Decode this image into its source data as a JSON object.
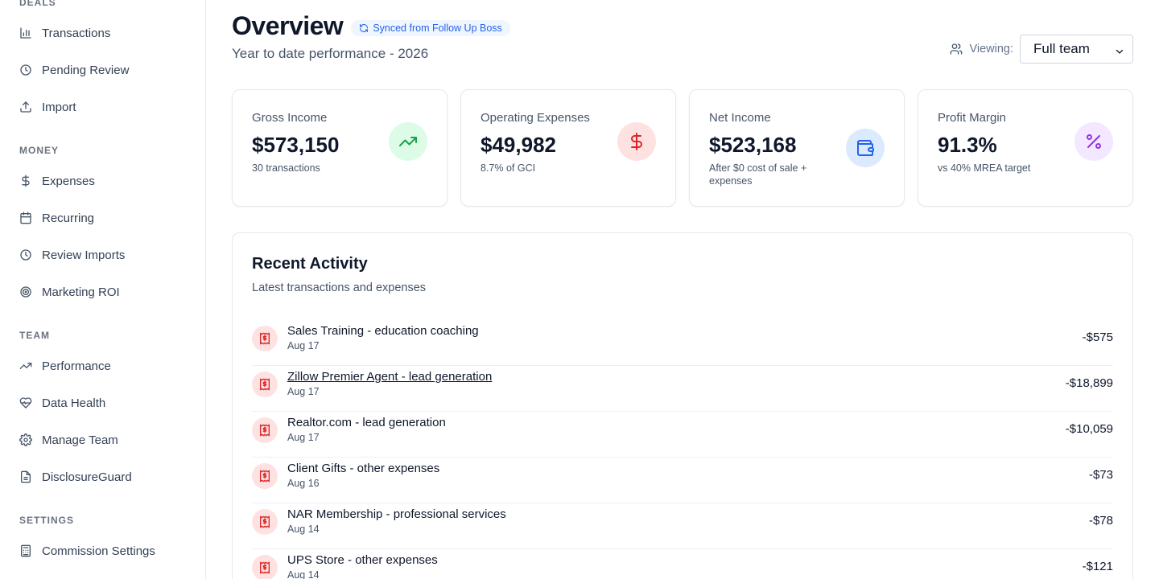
{
  "sidebar": {
    "sections": [
      {
        "label": "DEALS"
      },
      {
        "label": "MONEY"
      },
      {
        "label": "TEAM"
      },
      {
        "label": "SETTINGS"
      }
    ],
    "items": [
      {
        "label": "Transactions",
        "icon": "bar-chart-icon"
      },
      {
        "label": "Pending Review",
        "icon": "clock-icon"
      },
      {
        "label": "Import",
        "icon": "upload-icon"
      },
      {
        "label": "Expenses",
        "icon": "dollar-icon"
      },
      {
        "label": "Recurring",
        "icon": "calendar-icon"
      },
      {
        "label": "Review Imports",
        "icon": "clock-icon"
      },
      {
        "label": "Marketing ROI",
        "icon": "target-icon"
      },
      {
        "label": "Performance",
        "icon": "trending-up-icon"
      },
      {
        "label": "Data Health",
        "icon": "heart-pulse-icon"
      },
      {
        "label": "Manage Team",
        "icon": "gear-icon"
      },
      {
        "label": "DisclosureGuard",
        "icon": "file-icon"
      },
      {
        "label": "Commission Settings",
        "icon": "calculator-icon"
      }
    ]
  },
  "header": {
    "title": "Overview",
    "sync_badge": "Synced from Follow Up Boss",
    "subtitle": "Year to date performance - 2026",
    "viewing_label": "Viewing:",
    "viewing_value": "Full team"
  },
  "stats": [
    {
      "label": "Gross Income",
      "value": "$573,150",
      "sub": "30 transactions",
      "icon": "trending-up-icon",
      "color": "#16a34a",
      "bg": "#dcfce7"
    },
    {
      "label": "Operating Expenses",
      "value": "$49,982",
      "sub": "8.7% of GCI",
      "icon": "dollar-icon",
      "color": "#dc2626",
      "bg": "#fee2e2"
    },
    {
      "label": "Net Income",
      "value": "$523,168",
      "sub": "After $0 cost of sale + expenses",
      "icon": "wallet-icon",
      "color": "#2563eb",
      "bg": "#dbeafe"
    },
    {
      "label": "Profit Margin",
      "value": "91.3%",
      "sub": "vs 40% MREA target",
      "icon": "percent-icon",
      "color": "#9333ea",
      "bg": "#f3e8ff"
    }
  ],
  "activity": {
    "title": "Recent Activity",
    "subtitle": "Latest transactions and expenses",
    "rows": [
      {
        "name": "Sales Training - education coaching",
        "date": "Aug 17",
        "amount": "-$575"
      },
      {
        "name": "Zillow Premier Agent - lead generation",
        "date": "Aug 17",
        "amount": "-$18,899"
      },
      {
        "name": "Realtor.com - lead generation",
        "date": "Aug 17",
        "amount": "-$10,059"
      },
      {
        "name": "Client Gifts - other expenses",
        "date": "Aug 16",
        "amount": "-$73"
      },
      {
        "name": "NAR Membership - professional services",
        "date": "Aug 14",
        "amount": "-$78"
      },
      {
        "name": "UPS Store - other expenses",
        "date": "Aug 14",
        "amount": "-$121"
      }
    ]
  }
}
